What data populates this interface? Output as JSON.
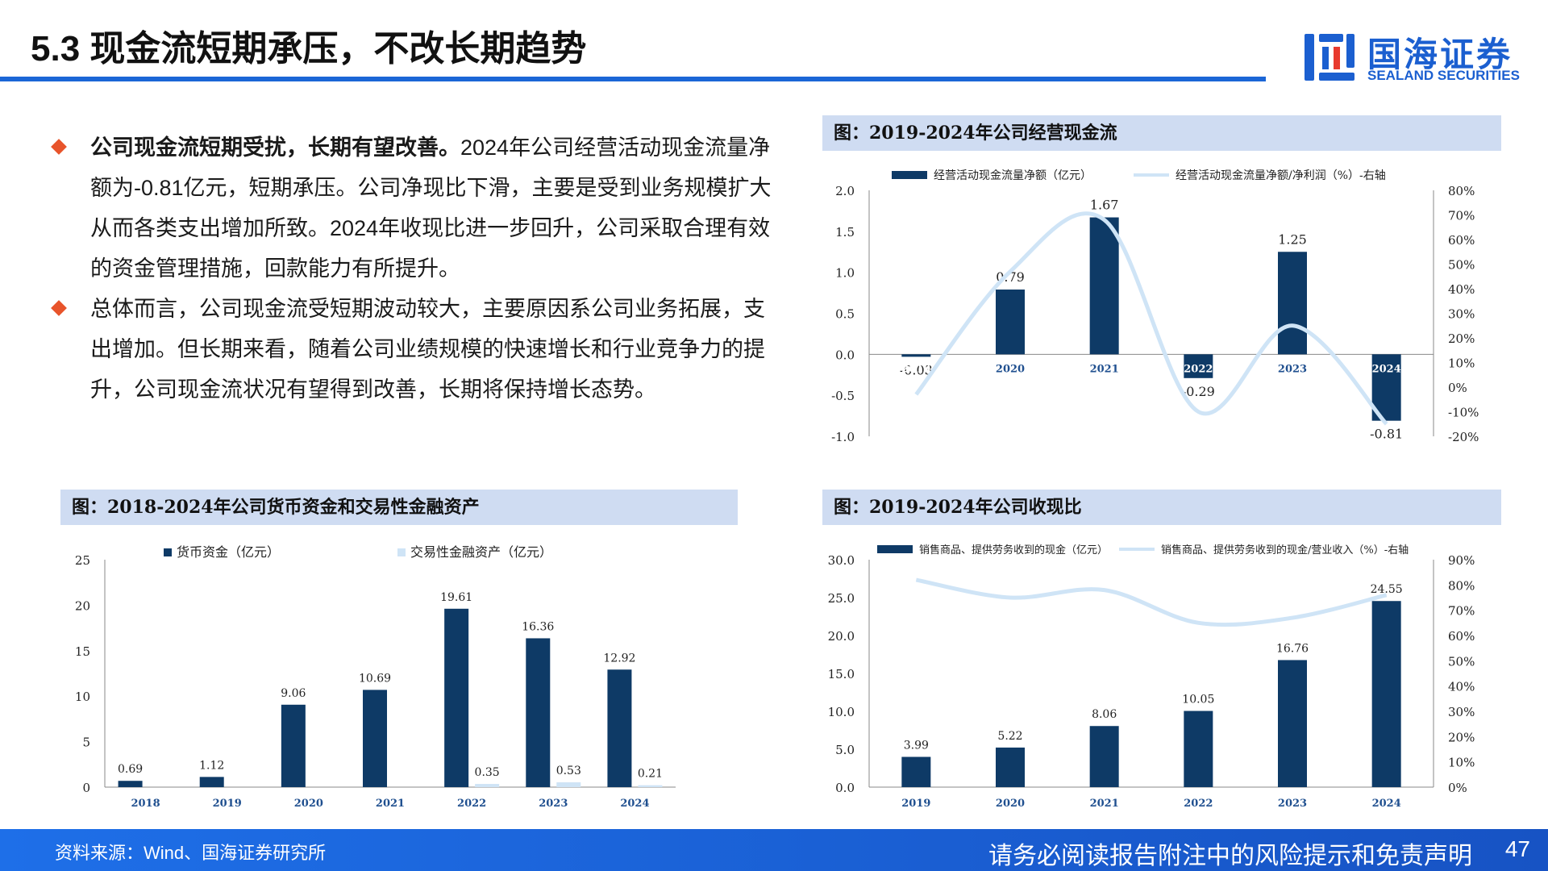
{
  "page": {
    "title": "5.3 现金流短期承压，不改长期趋势",
    "logo": {
      "cn": "国海证券",
      "en": "SEALAND SECURITIES"
    },
    "page_number": "47"
  },
  "bullets": [
    {
      "bold": "公司现金流短期受扰，长期有望改善。",
      "text": "2024年公司经营活动现金流量净额为-0.81亿元，短期承压。公司净现比下滑，主要是受到业务规模扩大从而各类支出增加所致。2024年收现比进一步回升，公司采取合理有效的资金管理措施，回款能力有所提升。"
    },
    {
      "bold": "",
      "text": "总体而言，公司现金流受短期波动较大，主要原因系公司业务拓展，支出增加。但长期来看，随着公司业绩规模的快速增长和行业竞争力的提升，公司现金流状况有望得到改善，长期将保持增长态势。"
    }
  ],
  "footer": {
    "source": "资料来源：Wind、国海证券研究所",
    "disclaimer": "请务必阅读报告附注中的风险提示和免责声明"
  },
  "colors": {
    "accent": "#1b66d6",
    "bar": "#0e3a66",
    "line": "#cfe4f6",
    "header_bg": "#cfdcf2",
    "bullet": "#e8542b"
  },
  "chart_data": [
    {
      "id": "operating_cash_flow",
      "heading": "图：2019-2024年公司经营现金流",
      "type": "bar",
      "categories": [
        "2019",
        "2020",
        "2021",
        "2022",
        "2023",
        "2024"
      ],
      "series": [
        {
          "name": "经营活动现金流量净额（亿元）",
          "type": "bar",
          "axis": "left",
          "values": [
            -0.03,
            0.79,
            1.67,
            -0.29,
            1.25,
            -0.81
          ],
          "labels": [
            "-0.03",
            "0.79",
            "1.67",
            "-0.29",
            "1.25",
            "-0.81"
          ]
        },
        {
          "name": "经营活动现金流量净额/净利润（%）-右轴",
          "type": "line",
          "axis": "right",
          "values": [
            -3,
            47,
            68,
            -10,
            25,
            -15
          ]
        }
      ],
      "left_axis": {
        "min": -1.0,
        "max": 2.0,
        "ticks": [
          "2.0",
          "1.5",
          "1.0",
          "0.5",
          "0.0",
          "-0.5",
          "-1.0"
        ]
      },
      "right_axis": {
        "min": -20,
        "max": 80,
        "ticks": [
          "80%",
          "70%",
          "60%",
          "50%",
          "40%",
          "30%",
          "20%",
          "10%",
          "0%",
          "-10%",
          "-20%"
        ]
      },
      "legend_position": "top"
    },
    {
      "id": "cash_and_assets",
      "heading": "图：2018-2024年公司货币资金和交易性金融资产",
      "type": "bar",
      "categories": [
        "2018",
        "2019",
        "2020",
        "2021",
        "2022",
        "2023",
        "2024"
      ],
      "series": [
        {
          "name": "货币资金（亿元）",
          "type": "bar",
          "values": [
            0.69,
            1.12,
            9.06,
            10.69,
            19.61,
            16.36,
            12.92
          ],
          "labels": [
            "0.69",
            "1.12",
            "9.06",
            "10.69",
            "19.61",
            "16.36",
            "12.92"
          ]
        },
        {
          "name": "交易性金融资产（亿元）",
          "type": "bar",
          "values": [
            0,
            0,
            0,
            0,
            0.35,
            0.53,
            0.21
          ],
          "labels": [
            "",
            "",
            "",
            "",
            "0.35",
            "0.53",
            "0.21"
          ]
        }
      ],
      "left_axis": {
        "min": 0,
        "max": 25,
        "ticks": [
          "25",
          "20",
          "15",
          "10",
          "5",
          "0"
        ]
      },
      "legend_position": "top"
    },
    {
      "id": "cash_collection_ratio",
      "heading": "图：2019-2024年公司收现比",
      "type": "bar",
      "categories": [
        "2019",
        "2020",
        "2021",
        "2022",
        "2023",
        "2024"
      ],
      "series": [
        {
          "name": "销售商品、提供劳务收到的现金（亿元）",
          "type": "bar",
          "axis": "left",
          "values": [
            3.99,
            5.22,
            8.06,
            10.05,
            16.76,
            24.55
          ],
          "labels": [
            "3.99",
            "5.22",
            "8.06",
            "10.05",
            "16.76",
            "24.55"
          ]
        },
        {
          "name": "销售商品、提供劳务收到的现金/营业收入（%）-右轴",
          "type": "line",
          "axis": "right",
          "values": [
            82,
            75,
            78,
            65,
            67,
            76
          ]
        }
      ],
      "left_axis": {
        "min": 0,
        "max": 30,
        "ticks": [
          "30.0",
          "25.0",
          "20.0",
          "15.0",
          "10.0",
          "5.0",
          "0.0"
        ]
      },
      "right_axis": {
        "min": 0,
        "max": 90,
        "ticks": [
          "90%",
          "80%",
          "70%",
          "60%",
          "50%",
          "40%",
          "30%",
          "20%",
          "10%",
          "0%"
        ]
      },
      "legend_position": "top"
    }
  ]
}
